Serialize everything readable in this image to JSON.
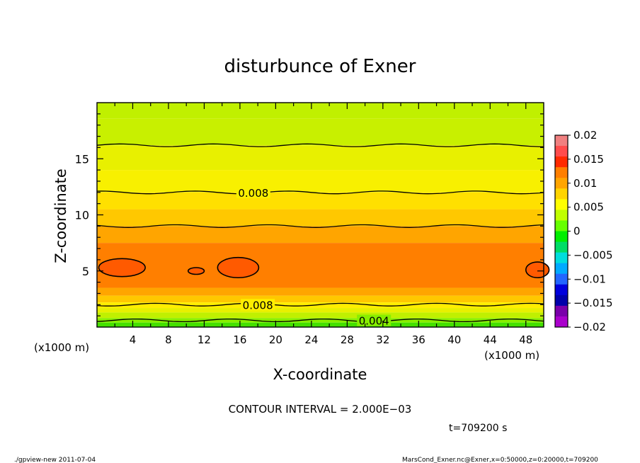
{
  "chart_data": {
    "type": "heatmap",
    "title": "disturbunce of Exner",
    "xlabel": "X-coordinate",
    "ylabel": "Z-coordinate",
    "x_unit_left": "(x1000 m)",
    "x_unit_right": "(x1000 m)",
    "xlim": [
      0,
      50
    ],
    "ylim": [
      0,
      20
    ],
    "x_ticks": [
      "4",
      "8",
      "12",
      "16",
      "20",
      "24",
      "28",
      "32",
      "36",
      "40",
      "44",
      "48"
    ],
    "y_ticks": [
      "5",
      "10",
      "15"
    ],
    "colorbar": {
      "ticks": [
        "0.02",
        "0.015",
        "0.01",
        "0.005",
        "0",
        "−0.005",
        "−0.01",
        "−0.015",
        "−0.02"
      ],
      "colors": [
        "#f08080",
        "#ff4c4c",
        "#ff2a00",
        "#ff7f00",
        "#ffa500",
        "#ffd400",
        "#ffff00",
        "#c0ff00",
        "#66ff00",
        "#00ee00",
        "#00dd66",
        "#00dddd",
        "#00aaff",
        "#2266ff",
        "#0000dd",
        "#0000aa",
        "#7a00aa",
        "#aa00cc"
      ]
    },
    "bands": [
      {
        "z0": 18.6,
        "z1": 20.0,
        "value": 0.0055,
        "color": "#c0f000"
      },
      {
        "z0": 16.2,
        "z1": 18.6,
        "value": 0.006,
        "color": "#c8f000"
      },
      {
        "z0": 14.0,
        "z1": 16.2,
        "value": 0.007,
        "color": "#e8f000"
      },
      {
        "z0": 12.0,
        "z1": 14.0,
        "value": 0.0075,
        "color": "#f8f000"
      },
      {
        "z0": 10.5,
        "z1": 12.0,
        "value": 0.0085,
        "color": "#ffe000"
      },
      {
        "z0": 9.0,
        "z1": 10.5,
        "value": 0.009,
        "color": "#ffc800"
      },
      {
        "z0": 7.5,
        "z1": 9.0,
        "value": 0.0095,
        "color": "#ffa500"
      },
      {
        "z0": 3.5,
        "z1": 7.5,
        "value": 0.0105,
        "color": "#ff7f00"
      },
      {
        "z0": 2.8,
        "z1": 3.5,
        "value": 0.0095,
        "color": "#ffa500"
      },
      {
        "z0": 2.2,
        "z1": 2.8,
        "value": 0.0085,
        "color": "#ffc800"
      },
      {
        "z0": 1.7,
        "z1": 2.2,
        "value": 0.0075,
        "color": "#ffee00"
      },
      {
        "z0": 1.3,
        "z1": 1.7,
        "value": 0.0065,
        "color": "#e8f000"
      },
      {
        "z0": 0.8,
        "z1": 1.3,
        "value": 0.0055,
        "color": "#c0f000"
      },
      {
        "z0": 0.4,
        "z1": 0.8,
        "value": 0.0045,
        "color": "#88ee00"
      },
      {
        "z0": 0.0,
        "z1": 0.4,
        "value": 0.003,
        "color": "#44e000"
      }
    ],
    "contours": [
      {
        "z": 16.2,
        "value": 0.006
      },
      {
        "z": 12.0,
        "value": 0.008,
        "label": "0.008",
        "label_x": 17.5
      },
      {
        "z": 9.0,
        "value": 0.01
      },
      {
        "z": 2.0,
        "value": 0.008,
        "label": "0.008",
        "label_x": 18
      },
      {
        "z": 0.6,
        "value": 0.004,
        "label": "0.004",
        "label_x": 31
      }
    ],
    "closed_contours": [
      {
        "x": 2.8,
        "z": 5.3,
        "rx": 2.6,
        "rz": 0.8,
        "value": 0.012
      },
      {
        "x": 11.1,
        "z": 5.0,
        "rx": 0.9,
        "rz": 0.3,
        "value": 0.012
      },
      {
        "x": 15.8,
        "z": 5.3,
        "rx": 2.3,
        "rz": 0.9,
        "value": 0.012
      },
      {
        "x": 49.3,
        "z": 5.1,
        "rx": 1.3,
        "rz": 0.7,
        "value": 0.012
      }
    ]
  },
  "contour_interval": "CONTOUR INTERVAL = 2.000E−03",
  "time_label": "t=709200 s",
  "footer_left": "./gpview-new  2011-07-04",
  "footer_right": "MarsCond_Exner.nc@Exner,x=0:50000,z=0:20000,t=709200"
}
